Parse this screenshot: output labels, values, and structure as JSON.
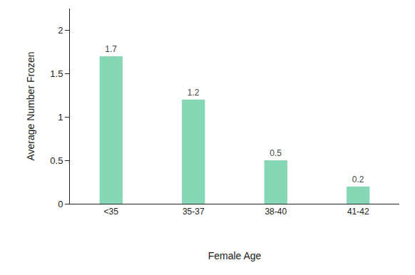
{
  "chart_data": {
    "type": "bar",
    "x_label": "Female Age",
    "y_label": "Average Number Frozen",
    "categories": [
      "<35",
      "35-37",
      "38-40",
      "41-42"
    ],
    "values": [
      1.7,
      1.2,
      0.5,
      0.2
    ],
    "color": "#86d7b6",
    "ylim": [
      0,
      2.25
    ],
    "yticks": [
      0,
      0.5,
      1,
      1.5,
      2
    ],
    "grid": false,
    "data_labels": true
  }
}
